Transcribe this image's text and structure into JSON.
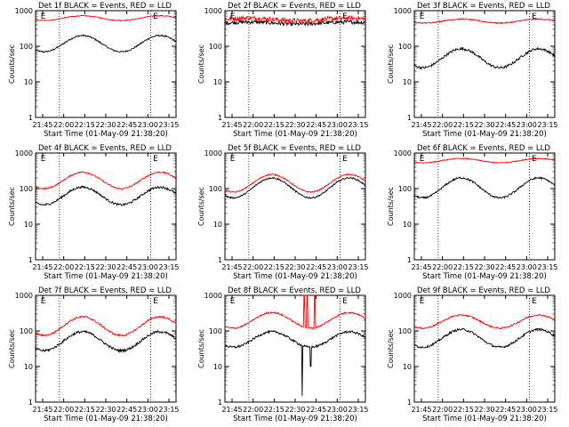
{
  "figure": {
    "x_ticks": [
      "21:45",
      "22:00",
      "22:15",
      "22:30",
      "22:45",
      "23:00",
      "23:15"
    ],
    "y_ticks": [
      "1",
      "10",
      "100",
      "1000"
    ],
    "xlabel": "Start Time (01-May-09 21:38:20)",
    "ylabel": "Counts/sec",
    "flare_marker": "E",
    "colors": {
      "events": "#000000",
      "lld": "#ff0000"
    }
  },
  "chart_data": [
    {
      "type": "line",
      "title": "Det 1f BLACK = Events, RED = LLD",
      "ylim": [
        1,
        1000
      ],
      "yscale": "log",
      "x_ticks": [
        "21:45",
        "22:00",
        "22:15",
        "22:30",
        "22:45",
        "23:00",
        "23:15"
      ],
      "xlabel": "Start Time (01-May-09 21:38:20)",
      "ylabel": "Counts/sec",
      "series": [
        {
          "color": "#000000",
          "shape": "orbit",
          "base": 70,
          "peak": 200,
          "noise": 0.05
        },
        {
          "color": "#ff0000",
          "shape": "orbit",
          "base": 530,
          "peak": 720,
          "noise": 0.03
        }
      ]
    },
    {
      "type": "line",
      "title": "Det 2f BLACK = Events, RED = LLD",
      "ylim": [
        1,
        1000
      ],
      "yscale": "log",
      "x_ticks": [
        "21:45",
        "22:00",
        "22:15",
        "22:30",
        "22:45",
        "23:00",
        "23:15"
      ],
      "xlabel": "Start Time (01-May-09 21:38:20)",
      "ylabel": "Counts/sec",
      "series": [
        {
          "color": "#000000",
          "shape": "flat",
          "base": 420,
          "peak": 480,
          "noise": 0.12
        },
        {
          "color": "#ff0000",
          "shape": "flat",
          "base": 520,
          "peak": 620,
          "noise": 0.15
        }
      ]
    },
    {
      "type": "line",
      "title": "Det 3f BLACK = Events, RED = LLD",
      "ylim": [
        1,
        1000
      ],
      "yscale": "log",
      "x_ticks": [
        "21:45",
        "22:00",
        "22:15",
        "22:30",
        "22:45",
        "23:00",
        "23:15"
      ],
      "xlabel": "Start Time (01-May-09 21:38:20)",
      "ylabel": "Counts/sec",
      "series": [
        {
          "color": "#000000",
          "shape": "orbit",
          "base": 25,
          "peak": 85,
          "noise": 0.08
        },
        {
          "color": "#ff0000",
          "shape": "orbit",
          "base": 450,
          "peak": 580,
          "noise": 0.04
        }
      ]
    },
    {
      "type": "line",
      "title": "Det 4f BLACK = Events, RED = LLD",
      "ylim": [
        1,
        1000
      ],
      "yscale": "log",
      "x_ticks": [
        "21:45",
        "22:00",
        "22:15",
        "22:30",
        "22:45",
        "23:00",
        "23:15"
      ],
      "xlabel": "Start Time (01-May-09 21:38:20)",
      "ylabel": "Counts/sec",
      "series": [
        {
          "color": "#000000",
          "shape": "orbit",
          "base": 35,
          "peak": 110,
          "noise": 0.07
        },
        {
          "color": "#ff0000",
          "shape": "orbit",
          "base": 100,
          "peak": 290,
          "noise": 0.05
        }
      ]
    },
    {
      "type": "line",
      "title": "Det 5f BLACK = Events, RED = LLD",
      "ylim": [
        1,
        1000
      ],
      "yscale": "log",
      "x_ticks": [
        "21:45",
        "22:00",
        "22:15",
        "22:30",
        "22:45",
        "23:00",
        "23:15"
      ],
      "xlabel": "Start Time (01-May-09 21:38:20)",
      "ylabel": "Counts/sec",
      "series": [
        {
          "color": "#000000",
          "shape": "orbit",
          "base": 55,
          "peak": 200,
          "noise": 0.05
        },
        {
          "color": "#ff0000",
          "shape": "orbit",
          "base": 80,
          "peak": 250,
          "noise": 0.04
        }
      ]
    },
    {
      "type": "line",
      "title": "Det 6f BLACK = Events, RED = LLD",
      "ylim": [
        1,
        1000
      ],
      "yscale": "log",
      "x_ticks": [
        "21:45",
        "22:00",
        "22:15",
        "22:30",
        "22:45",
        "23:00",
        "23:15"
      ],
      "xlabel": "Start Time (01-May-09 21:38:20)",
      "ylabel": "Counts/sec",
      "series": [
        {
          "color": "#000000",
          "shape": "orbit",
          "base": 55,
          "peak": 200,
          "noise": 0.06
        },
        {
          "color": "#ff0000",
          "shape": "orbit",
          "base": 530,
          "peak": 700,
          "noise": 0.03
        }
      ]
    },
    {
      "type": "line",
      "title": "Det 7f BLACK = Events, RED = LLD",
      "ylim": [
        1,
        1000
      ],
      "yscale": "log",
      "x_ticks": [
        "21:45",
        "22:00",
        "22:15",
        "22:30",
        "22:45",
        "23:00",
        "23:15"
      ],
      "xlabel": "Start Time (01-May-09 21:38:20)",
      "ylabel": "Counts/sec",
      "series": [
        {
          "color": "#000000",
          "shape": "orbit",
          "base": 28,
          "peak": 95,
          "noise": 0.08
        },
        {
          "color": "#ff0000",
          "shape": "orbit",
          "base": 75,
          "peak": 250,
          "noise": 0.06
        }
      ]
    },
    {
      "type": "line",
      "title": "Det 8f BLACK = Events, RED = LLD",
      "ylim": [
        1,
        1000
      ],
      "yscale": "log",
      "x_ticks": [
        "21:45",
        "22:00",
        "22:15",
        "22:30",
        "22:45",
        "23:00",
        "23:15"
      ],
      "xlabel": "Start Time (01-May-09 21:38:20)",
      "ylabel": "Counts/sec",
      "series": [
        {
          "color": "#000000",
          "shape": "orbit",
          "base": 35,
          "peak": 95,
          "noise": 0.07,
          "spikes": [
            {
              "at": 0.55,
              "value": 1.5
            },
            {
              "at": 0.61,
              "value": 10
            }
          ]
        },
        {
          "color": "#ff0000",
          "shape": "orbit",
          "base": 120,
          "peak": 330,
          "noise": 0.05,
          "spikes": [
            {
              "at": 0.565,
              "value": 1000
            },
            {
              "at": 0.585,
              "value": 1000
            },
            {
              "at": 0.64,
              "value": 1000
            }
          ]
        }
      ]
    },
    {
      "type": "line",
      "title": "Det 9f BLACK = Events, RED = LLD",
      "ylim": [
        1,
        1000
      ],
      "yscale": "log",
      "x_ticks": [
        "21:45",
        "22:00",
        "22:15",
        "22:30",
        "22:45",
        "23:00",
        "23:15"
      ],
      "xlabel": "Start Time (01-May-09 21:38:20)",
      "ylabel": "Counts/sec",
      "series": [
        {
          "color": "#000000",
          "shape": "orbit",
          "base": 35,
          "peak": 110,
          "noise": 0.07
        },
        {
          "color": "#ff0000",
          "shape": "orbit",
          "base": 120,
          "peak": 280,
          "noise": 0.05
        }
      ]
    }
  ]
}
